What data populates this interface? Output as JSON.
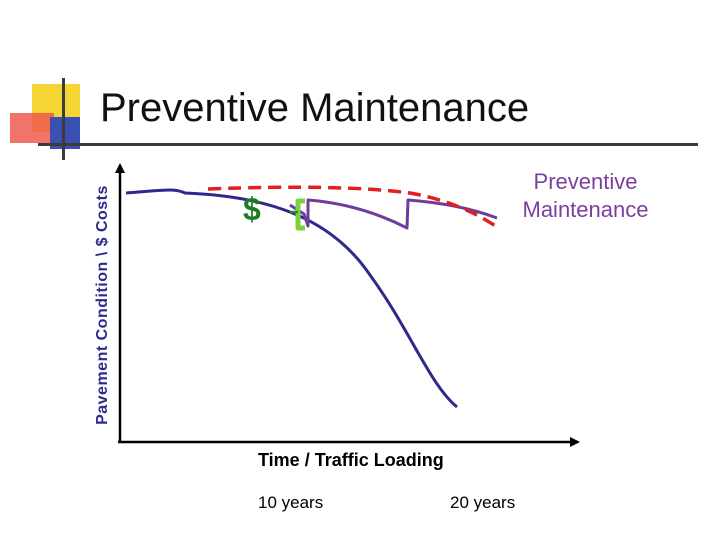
{
  "slide": {
    "title": "Preventive Maintenance",
    "colors": {
      "yellow": "#f5d533",
      "red": "#f05a4f",
      "blue": "#3a51b3",
      "bar": "#3b3b3b"
    }
  },
  "chart_data": {
    "type": "line",
    "ylabel": "Pavement Condition \\ $ Costs",
    "xlabel": "Time / Traffic Loading",
    "x_ticks": [
      "10 years",
      "20 years"
    ],
    "annotations": [
      "Preventive Maintenance",
      "$"
    ],
    "series": [
      {
        "color": "#2e2a8c",
        "style": "solid",
        "description": "deterioration without treatment"
      },
      {
        "color": "#6f3c9e",
        "style": "solid",
        "description": "sawtooth with preventive treatments"
      },
      {
        "color": "#e02020",
        "style": "dashed",
        "description": "maintained condition envelope"
      }
    ],
    "grid": false
  }
}
